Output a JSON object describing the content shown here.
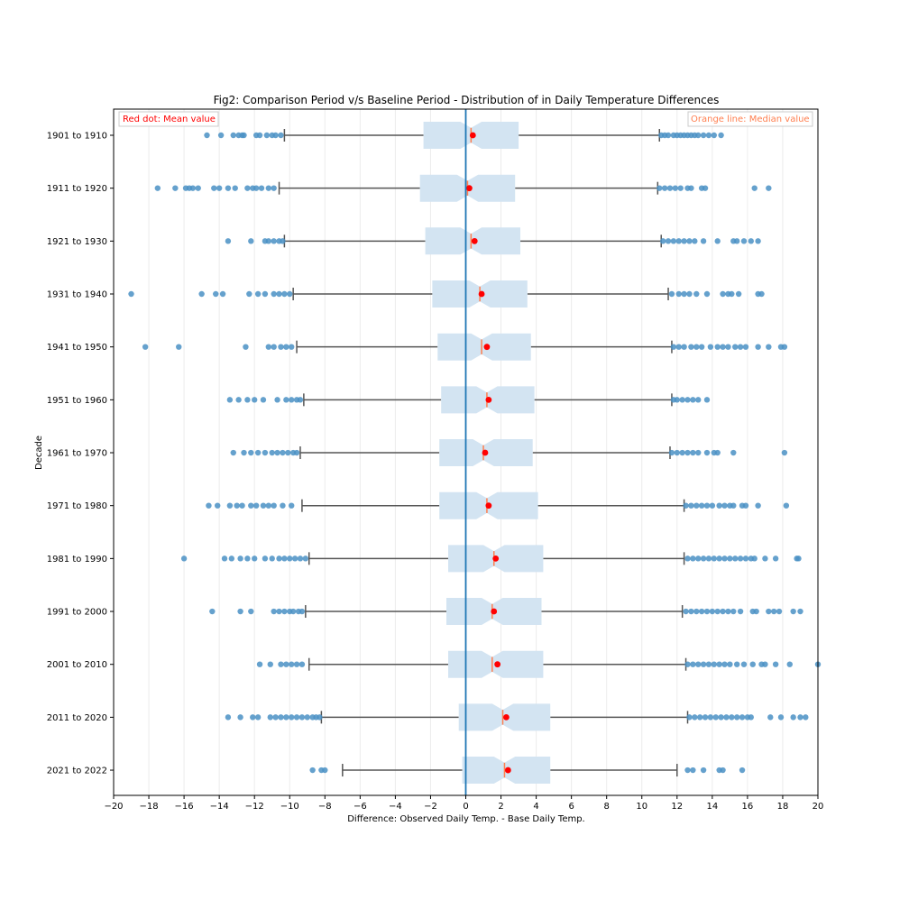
{
  "chart_data": {
    "type": "boxplot",
    "title": "Fig2: Comparison Period v/s Baseline Period - Distribution of in Daily Temperature Differences",
    "xlabel": "Difference: Observed Daily Temp. - Base Daily Temp.",
    "ylabel": "Decade",
    "xlim": [
      -20,
      20
    ],
    "x_ticks": [
      -20,
      -18,
      -16,
      -14,
      -12,
      -10,
      -8,
      -6,
      -4,
      -2,
      0,
      2,
      4,
      6,
      8,
      10,
      12,
      14,
      16,
      18,
      20
    ],
    "grid": "vertical",
    "reference_line_x": 0,
    "annotations": {
      "mean_note": "Red dot: Mean value",
      "median_note": "Orange line: Median value"
    },
    "colors": {
      "box_fill": "#d3e4f2",
      "whisker": "#555555",
      "outlier": "#4a90c4",
      "mean": "#ff0000",
      "median": "#ff7f50",
      "reference": "#1f77b4"
    },
    "categories": [
      "1901 to 1910",
      "1911 to 1920",
      "1921 to 1930",
      "1931 to 1940",
      "1941 to 1950",
      "1951 to 1960",
      "1961 to 1970",
      "1971 to 1980",
      "1981 to 1990",
      "1991 to 2000",
      "2001 to 2010",
      "2011 to 2020",
      "2021 to 2022"
    ],
    "boxes": [
      {
        "q1": -2.4,
        "median": 0.3,
        "q3": 3.0,
        "mean": 0.4,
        "whislo": -10.3,
        "whishi": 11.0,
        "outliers": [
          -14.7,
          -13.9,
          -13.2,
          -12.9,
          -12.7,
          -12.6,
          -11.9,
          -11.7,
          -11.3,
          -11.0,
          -10.8,
          -10.5,
          11.1,
          11.3,
          11.5,
          11.8,
          12.0,
          12.2,
          12.4,
          12.6,
          12.8,
          13.0,
          13.2,
          13.5,
          13.8,
          14.1,
          14.5
        ]
      },
      {
        "q1": -2.6,
        "median": 0.1,
        "q3": 2.8,
        "mean": 0.2,
        "whislo": -10.6,
        "whishi": 10.9,
        "outliers": [
          -17.5,
          -16.5,
          -15.9,
          -15.7,
          -15.5,
          -15.2,
          -14.3,
          -14.0,
          -13.5,
          -13.1,
          -12.4,
          -12.1,
          -11.9,
          -11.6,
          -11.2,
          -10.9,
          11.0,
          11.3,
          11.6,
          11.9,
          12.2,
          12.6,
          12.8,
          13.4,
          13.6,
          16.4,
          17.2
        ]
      },
      {
        "q1": -2.3,
        "median": 0.3,
        "q3": 3.1,
        "mean": 0.5,
        "whislo": -10.3,
        "whishi": 11.1,
        "outliers": [
          -13.5,
          -12.2,
          -11.4,
          -11.2,
          -10.9,
          -10.6,
          -10.4,
          11.2,
          11.5,
          11.8,
          12.1,
          12.4,
          12.7,
          13.0,
          13.5,
          14.3,
          15.2,
          15.4,
          15.8,
          16.2,
          16.6
        ]
      },
      {
        "q1": -1.9,
        "median": 0.8,
        "q3": 3.5,
        "mean": 0.9,
        "whislo": -9.8,
        "whishi": 11.5,
        "outliers": [
          -19.0,
          -15.0,
          -14.2,
          -13.8,
          -12.3,
          -11.8,
          -11.4,
          -10.9,
          -10.6,
          -10.3,
          -10.0,
          11.7,
          12.1,
          12.4,
          12.7,
          13.1,
          13.7,
          14.6,
          14.9,
          15.1,
          15.5,
          16.6,
          16.8
        ]
      },
      {
        "q1": -1.6,
        "median": 0.9,
        "q3": 3.7,
        "mean": 1.2,
        "whislo": -9.6,
        "whishi": 11.7,
        "outliers": [
          -18.2,
          -16.3,
          -12.5,
          -11.2,
          -10.9,
          -10.5,
          -10.2,
          -9.9,
          11.8,
          12.1,
          12.4,
          12.8,
          13.1,
          13.4,
          13.9,
          14.3,
          14.6,
          14.9,
          15.3,
          15.6,
          15.9,
          16.6,
          17.2,
          17.9,
          18.1
        ]
      },
      {
        "q1": -1.4,
        "median": 1.2,
        "q3": 3.9,
        "mean": 1.3,
        "whislo": -9.2,
        "whishi": 11.7,
        "outliers": [
          -13.4,
          -12.9,
          -12.4,
          -12.0,
          -11.5,
          -10.7,
          -10.2,
          -9.9,
          -9.6,
          -9.4,
          11.8,
          12.0,
          12.3,
          12.6,
          12.9,
          13.2,
          13.7
        ]
      },
      {
        "q1": -1.5,
        "median": 1.0,
        "q3": 3.8,
        "mean": 1.1,
        "whislo": -9.4,
        "whishi": 11.6,
        "outliers": [
          -13.2,
          -12.6,
          -12.2,
          -11.8,
          -11.4,
          -11.0,
          -10.7,
          -10.4,
          -10.1,
          -9.8,
          -9.6,
          11.7,
          12.0,
          12.3,
          12.6,
          12.9,
          13.2,
          13.7,
          14.1,
          14.3,
          15.2,
          18.1
        ]
      },
      {
        "q1": -1.5,
        "median": 1.2,
        "q3": 4.1,
        "mean": 1.3,
        "whislo": -9.3,
        "whishi": 12.4,
        "outliers": [
          -14.6,
          -14.1,
          -13.4,
          -13.0,
          -12.7,
          -12.2,
          -11.9,
          -11.5,
          -11.2,
          -10.9,
          -10.4,
          -9.9,
          12.5,
          12.8,
          13.1,
          13.4,
          13.7,
          14.0,
          14.4,
          14.7,
          15.0,
          15.2,
          15.7,
          15.9,
          16.6,
          18.2
        ]
      },
      {
        "q1": -1.0,
        "median": 1.6,
        "q3": 4.4,
        "mean": 1.7,
        "whislo": -8.9,
        "whishi": 12.4,
        "outliers": [
          -16.0,
          -13.7,
          -13.3,
          -12.8,
          -12.4,
          -12.0,
          -11.4,
          -11.0,
          -10.6,
          -10.3,
          -10.0,
          -9.7,
          -9.4,
          -9.1,
          12.6,
          12.9,
          13.2,
          13.5,
          13.8,
          14.1,
          14.4,
          14.7,
          15.0,
          15.3,
          15.6,
          15.9,
          16.2,
          16.4,
          17.0,
          17.6,
          18.8,
          18.9
        ]
      },
      {
        "q1": -1.1,
        "median": 1.5,
        "q3": 4.3,
        "mean": 1.6,
        "whislo": -9.1,
        "whishi": 12.3,
        "outliers": [
          -14.4,
          -12.8,
          -12.2,
          -10.9,
          -10.6,
          -10.3,
          -10.0,
          -9.8,
          -9.5,
          -9.3,
          12.5,
          12.8,
          13.1,
          13.4,
          13.7,
          14.0,
          14.3,
          14.6,
          14.9,
          15.2,
          15.6,
          16.3,
          16.5,
          17.2,
          17.5,
          17.8,
          18.6,
          19.0
        ]
      },
      {
        "q1": -1.0,
        "median": 1.5,
        "q3": 4.4,
        "mean": 1.8,
        "whislo": -8.9,
        "whishi": 12.5,
        "outliers": [
          -11.7,
          -11.1,
          -10.5,
          -10.2,
          -9.9,
          -9.6,
          -9.3,
          12.6,
          12.9,
          13.2,
          13.5,
          13.8,
          14.1,
          14.4,
          14.7,
          15.0,
          15.4,
          15.8,
          16.3,
          16.8,
          17.0,
          17.6,
          18.4,
          20.0
        ]
      },
      {
        "q1": -0.4,
        "median": 2.1,
        "q3": 4.8,
        "mean": 2.3,
        "whislo": -8.2,
        "whishi": 12.6,
        "outliers": [
          -13.5,
          -12.8,
          -12.1,
          -11.8,
          -11.1,
          -10.8,
          -10.5,
          -10.2,
          -9.9,
          -9.6,
          -9.3,
          -9.0,
          -8.7,
          -8.5,
          -8.3,
          12.7,
          13.0,
          13.3,
          13.6,
          13.9,
          14.2,
          14.5,
          14.8,
          15.1,
          15.4,
          15.7,
          16.0,
          16.2,
          17.3,
          17.9,
          18.6,
          19.0,
          19.3
        ]
      },
      {
        "q1": -0.2,
        "median": 2.2,
        "q3": 4.8,
        "mean": 2.4,
        "whislo": -7.0,
        "whishi": 12.0,
        "outliers": [
          -8.7,
          -8.2,
          -8.0,
          12.6,
          12.9,
          13.5,
          14.4,
          14.6,
          15.7
        ]
      }
    ]
  }
}
